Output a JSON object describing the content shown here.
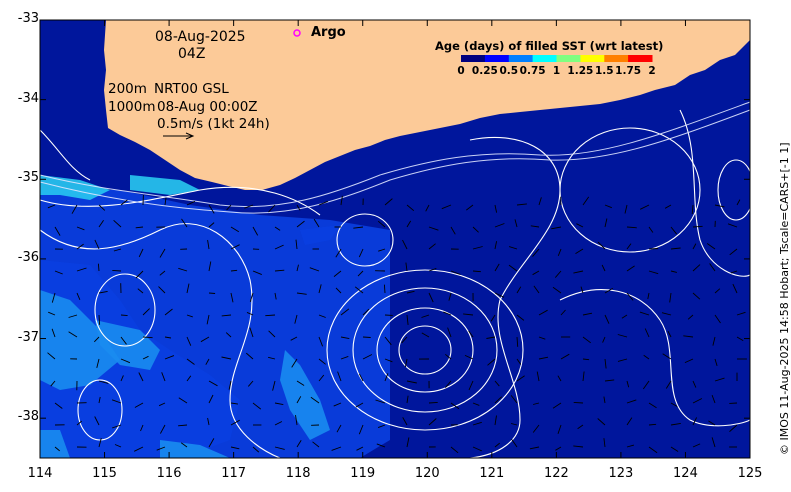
{
  "header": {
    "date": "08-Aug-2025",
    "time": "04Z"
  },
  "info": {
    "depth_line1": "200m",
    "depth_line2": "1000m",
    "product": "NRT00 GSL",
    "analysis_time": "08-Aug 00:00Z",
    "scale_label": "0.5m/s (1kt 24h)"
  },
  "argo": {
    "label": "Argo",
    "marker_color": "#ff00ff"
  },
  "legend": {
    "title": "Age (days) of filled SST (wrt latest)",
    "ticks": [
      "0",
      "0.25",
      "0.5",
      "0.75",
      "1",
      "1.25",
      "1.5",
      "1.75",
      "2"
    ],
    "colors": [
      "#00007f",
      "#0000ff",
      "#0080ff",
      "#00ffff",
      "#80ff80",
      "#ffff00",
      "#ff8000",
      "#ff0000",
      "#7f0000"
    ]
  },
  "axes": {
    "x_ticks": [
      "114",
      "115",
      "116",
      "117",
      "118",
      "119",
      "120",
      "121",
      "122",
      "123",
      "124",
      "125"
    ],
    "y_ticks": [
      "-33",
      "-34",
      "-35",
      "-36",
      "-37",
      "-38"
    ],
    "xlim": [
      114,
      125
    ],
    "ylim": [
      -38.5,
      -33
    ]
  },
  "colors": {
    "land": "#fcca98",
    "ocean_deep": "#00169c",
    "ocean_mid": "#0a3fe0",
    "ocean_light": "#1a8cf0",
    "ocean_cyan": "#28c8f0",
    "contour": "#ffffff",
    "vector": "#000000"
  },
  "credit": "© IMOS 11-Aug-2025 14:58 Hobart; Tscale=CARS+[-1 1]"
}
